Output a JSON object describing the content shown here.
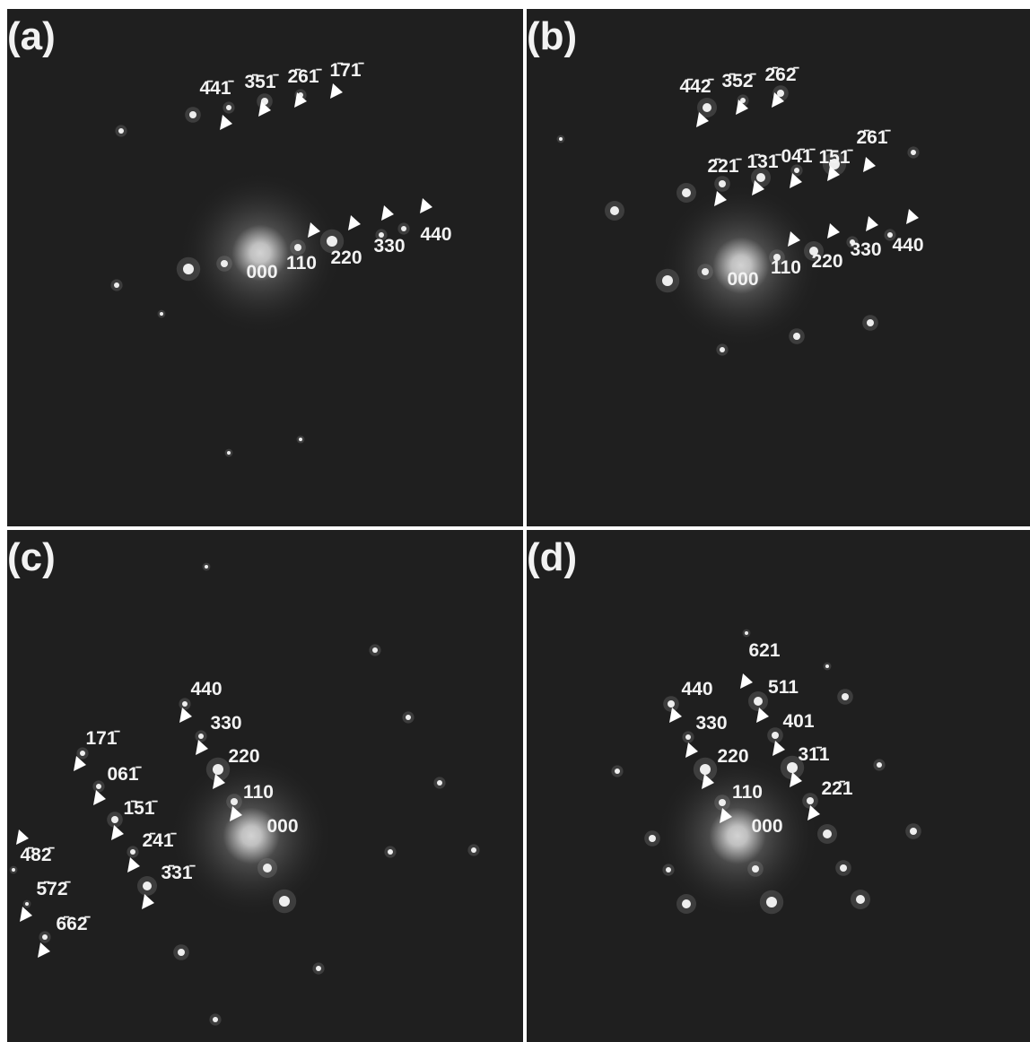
{
  "panels": [
    {
      "label": "(a)",
      "indices": [
        "4̄41̄",
        "3̄51̄",
        "2̄61̄",
        "1̄71̄",
        "000",
        "110",
        "220",
        "330",
        "440"
      ]
    },
    {
      "label": "(b)",
      "indices": [
        "4̄42̄",
        "3̄52̄",
        "2̄62̄",
        "2̄21̄",
        "1̄31̄",
        "04̄1̄",
        "1̄51̄",
        "2̄61̄",
        "000",
        "110",
        "220",
        "330",
        "440"
      ]
    },
    {
      "label": "(c)",
      "indices": [
        "440",
        "330",
        "220",
        "110",
        "000",
        "171̄",
        "061̄",
        "1̄51̄",
        "2̄41̄",
        "3̄31̄",
        "4̄82̄",
        "5̄72̄",
        "6̄62̄"
      ]
    },
    {
      "label": "(d)",
      "indices": [
        "621",
        "440",
        "511",
        "330",
        "401",
        "220",
        "31̄1",
        "110",
        "22̄1",
        "000"
      ]
    }
  ]
}
